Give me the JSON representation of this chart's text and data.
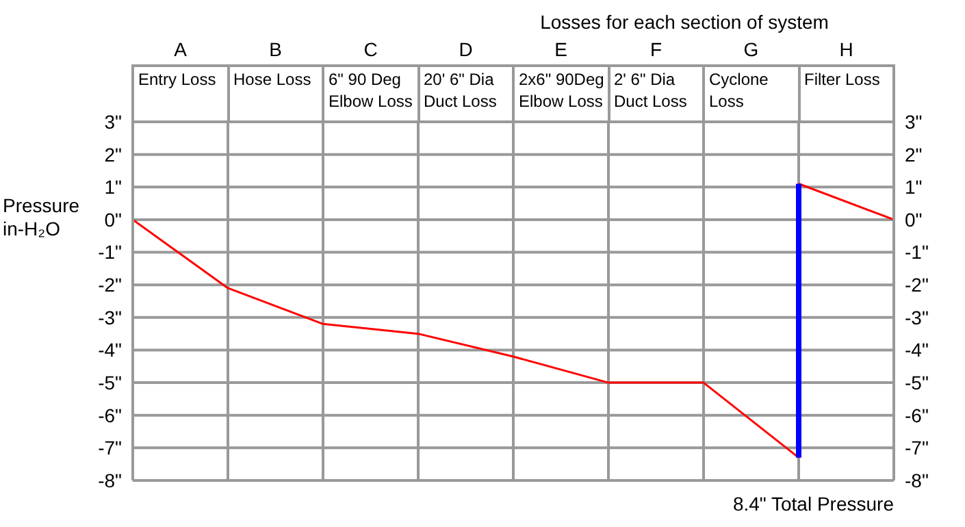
{
  "chart_data": {
    "type": "line",
    "title": "Losses for each section of system",
    "ylabel": "Pressure in-H₂O",
    "categories": [
      null,
      null,
      null,
      null,
      null,
      null,
      null,
      null,
      null
    ],
    "series": [
      {
        "color": "#ff0000",
        "values": [
          0,
          -2.1,
          -3.2,
          -3.5,
          -4.2,
          -5.0,
          -5.0,
          -7.3,
          null
        ]
      },
      {
        "color": "#ff0000",
        "values": [
          null,
          null,
          null,
          null,
          null,
          null,
          null,
          1.1,
          0
        ]
      },
      {
        "type": "bar",
        "color": "#0000ff",
        "base": [
          null,
          null,
          null,
          null,
          null,
          null,
          null,
          -7.3,
          null
        ],
        "values": [
          null,
          null,
          null,
          null,
          null,
          null,
          null,
          8.4,
          null
        ]
      }
    ],
    "ylim": [
      -8,
      3
    ],
    "yticks": [
      {
        "value": 3,
        "label": "3\""
      },
      {
        "value": 2,
        "label": "2\""
      },
      {
        "value": 1,
        "label": "1\""
      },
      {
        "value": 0,
        "label": "0\""
      },
      {
        "value": -1,
        "label": "-1\""
      },
      {
        "value": -2,
        "label": "-2\""
      },
      {
        "value": -3,
        "label": "-3\""
      },
      {
        "value": -4,
        "label": "-4\""
      },
      {
        "value": -5,
        "label": "-5\""
      },
      {
        "value": -6,
        "label": "-6\""
      },
      {
        "value": -7,
        "label": "-7\""
      },
      {
        "value": -8,
        "label": "-8\""
      }
    ],
    "y2lim": [
      -8,
      3
    ],
    "y2ticks": [
      {
        "value": 3,
        "label": "3\""
      },
      {
        "value": 2,
        "label": "2\""
      },
      {
        "value": 1,
        "label": "1\""
      },
      {
        "value": 0,
        "label": "0\""
      },
      {
        "value": -1,
        "label": "-1\""
      },
      {
        "value": -2,
        "label": "-2\""
      },
      {
        "value": -3,
        "label": "-3\""
      },
      {
        "value": -4,
        "label": "-4\""
      },
      {
        "value": -5,
        "label": "-5\""
      },
      {
        "value": -6,
        "label": "-6\""
      },
      {
        "value": -7,
        "label": "-7\""
      },
      {
        "value": -8,
        "label": "-8\""
      }
    ],
    "grid": true,
    "marker": "none",
    "line_style": "solid",
    "annotations": [
      "A",
      "B",
      "C",
      "D",
      "E",
      "F",
      "G",
      "H",
      "Entry Loss",
      "Hose Loss",
      "6\" 90 Deg Elbow Loss",
      "20' 6\" Dia Duct Loss",
      "2x6\" 90Deg Elbow Loss",
      "2' 6\" Dia Duct Loss",
      "Cyclone Loss",
      "Filter Loss",
      "8.4\" Total Pressure"
    ]
  }
}
